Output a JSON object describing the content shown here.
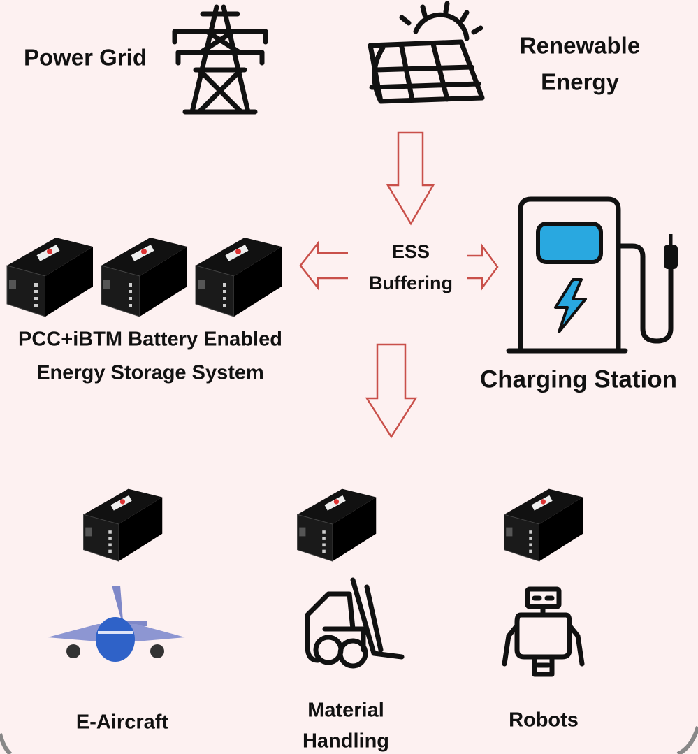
{
  "nodes": [
    {
      "label": [
        "Power Grid"
      ]
    },
    {
      "label": [
        "Renewable",
        "Energy"
      ]
    },
    {
      "label": [
        "ESS",
        "Buffering"
      ]
    },
    {
      "label": [
        "PCC+iBTM Battery Enabled",
        "Energy Storage System"
      ]
    },
    {
      "label": [
        "Charging Station"
      ]
    },
    {
      "label": [
        "E-Aircraft"
      ]
    },
    {
      "label": [
        "Material",
        "Handling"
      ]
    },
    {
      "label": [
        "Robots"
      ]
    }
  ]
}
